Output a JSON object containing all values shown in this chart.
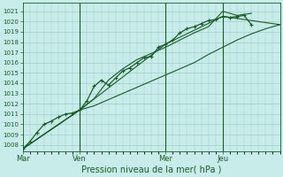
{
  "bg_color": "#c8ece9",
  "grid_color": "#9ecfca",
  "line_color": "#1a5c28",
  "xlabel": "Pression niveau de la mer( hPa )",
  "yticks": [
    1008,
    1009,
    1010,
    1011,
    1012,
    1013,
    1014,
    1015,
    1016,
    1017,
    1018,
    1019,
    1020,
    1021
  ],
  "ylim": [
    1007.4,
    1021.8
  ],
  "xtick_labels": [
    "Mar",
    "Ven",
    "Mer",
    "Jeu"
  ],
  "xtick_positions": [
    0,
    2,
    5,
    7
  ],
  "xlim": [
    0,
    9
  ],
  "vlines_x": [
    2,
    5,
    7
  ],
  "line_main": {
    "x": [
      0,
      0.25,
      0.5,
      0.75,
      1.0,
      1.25,
      1.5,
      1.75,
      2.0,
      2.25,
      2.5,
      2.75,
      3.0,
      3.25,
      3.5,
      3.75,
      4.0,
      4.25,
      4.5,
      4.75,
      5.0,
      5.25,
      5.5,
      5.75,
      6.0,
      6.25,
      6.5,
      6.75,
      7.0,
      7.25,
      7.5,
      7.75,
      8.0
    ],
    "y": [
      1007.6,
      1008.3,
      1009.2,
      1010.0,
      1010.3,
      1010.7,
      1011.0,
      1011.1,
      1011.4,
      1012.3,
      1013.7,
      1014.3,
      1013.8,
      1014.5,
      1015.2,
      1015.5,
      1016.0,
      1016.5,
      1016.6,
      1017.5,
      1017.8,
      1018.2,
      1018.9,
      1019.3,
      1019.5,
      1019.8,
      1020.1,
      1020.2,
      1020.5,
      1020.4,
      1020.5,
      1020.6,
      1019.7
    ],
    "marker": "+",
    "markersize": 3.5,
    "linewidth": 0.9
  },
  "line_straight": {
    "x": [
      0,
      2,
      5,
      7,
      9
    ],
    "y": [
      1007.6,
      1011.4,
      1017.8,
      1020.5,
      1019.7
    ],
    "linewidth": 0.8
  },
  "line_lower": {
    "x": [
      0,
      2,
      2.5,
      3.0,
      3.5,
      4.0,
      4.5,
      5.0,
      5.5,
      6.0,
      6.5,
      7.0,
      7.5,
      8.0,
      8.5,
      9.0
    ],
    "y": [
      1007.6,
      1011.4,
      1011.8,
      1012.4,
      1013.0,
      1013.6,
      1014.2,
      1014.8,
      1015.4,
      1016.0,
      1016.8,
      1017.5,
      1018.2,
      1018.8,
      1019.3,
      1019.7
    ],
    "linewidth": 0.8
  },
  "line_upper": {
    "x": [
      0,
      2,
      2.5,
      3.0,
      3.5,
      4.0,
      4.5,
      5.0,
      5.5,
      6.0,
      6.5,
      7.0,
      7.25,
      7.5,
      8.0
    ],
    "y": [
      1007.6,
      1011.4,
      1012.5,
      1014.3,
      1015.4,
      1016.3,
      1016.9,
      1017.5,
      1018.2,
      1018.9,
      1019.5,
      1021.0,
      1020.8,
      1020.6,
      1020.8
    ],
    "linewidth": 0.8
  }
}
